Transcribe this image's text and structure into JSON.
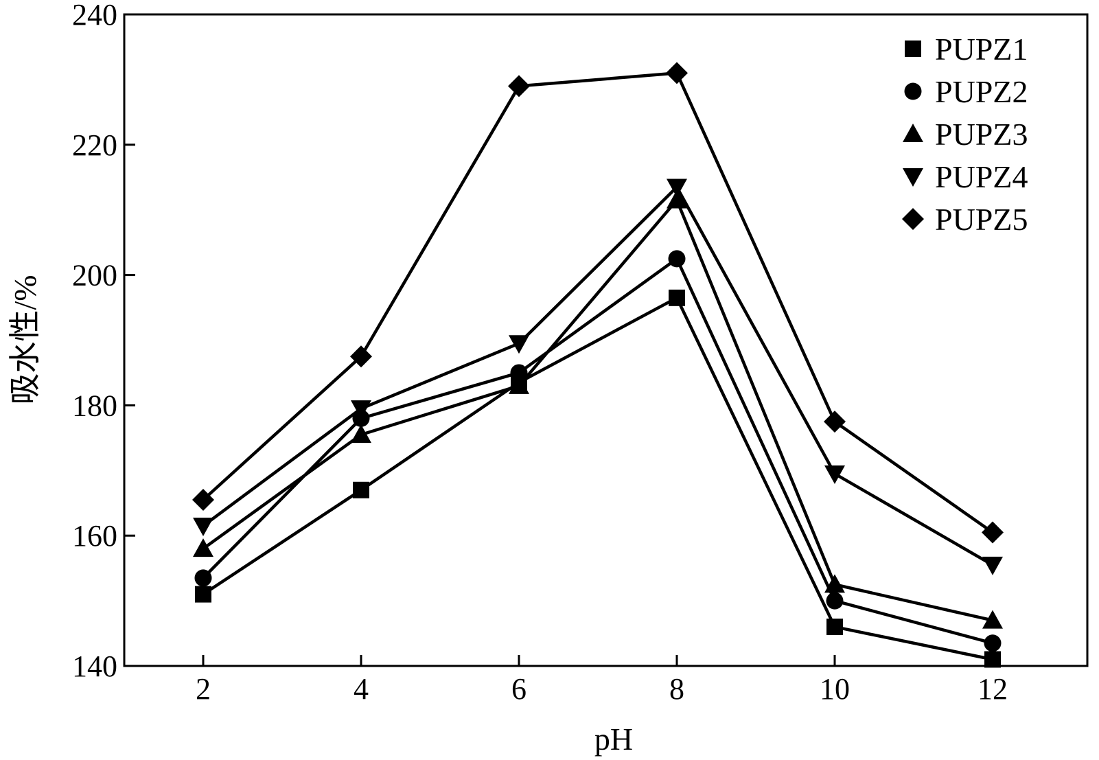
{
  "chart_data": {
    "type": "line",
    "title": "",
    "xlabel": "pH",
    "ylabel": "吸水性/%",
    "x": [
      2,
      4,
      6,
      8,
      10,
      12
    ],
    "xticks": [
      "2",
      "4",
      "6",
      "8",
      "10",
      "12"
    ],
    "yticks": [
      "140",
      "160",
      "180",
      "200",
      "220",
      "240"
    ],
    "xlim": [
      1,
      13.2
    ],
    "ylim": [
      140,
      240
    ],
    "grid": false,
    "legend_position": "top-right",
    "line_color": "#000000",
    "series": [
      {
        "name": "PUPZ1",
        "marker": "square",
        "values": [
          151,
          167,
          183.5,
          196.5,
          146,
          141
        ]
      },
      {
        "name": "PUPZ2",
        "marker": "circle",
        "values": [
          153.5,
          178,
          185,
          202.5,
          150,
          143.5
        ]
      },
      {
        "name": "PUPZ3",
        "marker": "triangle-up",
        "values": [
          158,
          175.5,
          183,
          211.5,
          152.5,
          147
        ]
      },
      {
        "name": "PUPZ4",
        "marker": "triangle-down",
        "values": [
          161.5,
          179.5,
          189.5,
          213.5,
          169.5,
          155.5
        ]
      },
      {
        "name": "PUPZ5",
        "marker": "diamond",
        "values": [
          165.5,
          187.5,
          229,
          231,
          177.5,
          160.5
        ]
      }
    ]
  }
}
